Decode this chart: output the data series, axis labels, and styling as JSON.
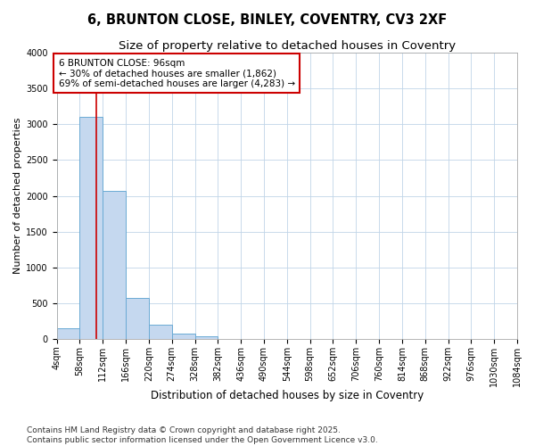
{
  "title": "6, BRUNTON CLOSE, BINLEY, COVENTRY, CV3 2XF",
  "subtitle": "Size of property relative to detached houses in Coventry",
  "xlabel": "Distribution of detached houses by size in Coventry",
  "ylabel": "Number of detached properties",
  "bar_values": [
    150,
    3100,
    2075,
    575,
    200,
    75,
    40,
    0,
    0,
    0,
    0,
    0,
    0,
    0,
    0,
    0,
    0,
    0,
    0,
    0
  ],
  "bin_edges": [
    4,
    58,
    112,
    166,
    220,
    274,
    328,
    382,
    436,
    490,
    544,
    598,
    652,
    706,
    760,
    814,
    868,
    922,
    976,
    1030,
    1084
  ],
  "tick_labels": [
    "4sqm",
    "58sqm",
    "112sqm",
    "166sqm",
    "220sqm",
    "274sqm",
    "328sqm",
    "382sqm",
    "436sqm",
    "490sqm",
    "544sqm",
    "598sqm",
    "652sqm",
    "706sqm",
    "760sqm",
    "814sqm",
    "868sqm",
    "922sqm",
    "976sqm",
    "1030sqm",
    "1084sqm"
  ],
  "bar_color": "#c5d8ef",
  "bar_edge_color": "#6aaad4",
  "grid_color": "#c0d4e8",
  "bg_color": "#ffffff",
  "fig_bg_color": "#ffffff",
  "vline_x": 96,
  "vline_color": "#cc0000",
  "annotation_line1": "6 BRUNTON CLOSE: 96sqm",
  "annotation_line2": "← 30% of detached houses are smaller (1,862)",
  "annotation_line3": "69% of semi-detached houses are larger (4,283) →",
  "annotation_box_color": "#cc0000",
  "ylim": [
    0,
    4000
  ],
  "yticks": [
    0,
    500,
    1000,
    1500,
    2000,
    2500,
    3000,
    3500,
    4000
  ],
  "footer": "Contains HM Land Registry data © Crown copyright and database right 2025.\nContains public sector information licensed under the Open Government Licence v3.0.",
  "title_fontsize": 10.5,
  "subtitle_fontsize": 9.5,
  "xlabel_fontsize": 8.5,
  "ylabel_fontsize": 8,
  "tick_fontsize": 7,
  "annotation_fontsize": 7.5,
  "footer_fontsize": 6.5
}
